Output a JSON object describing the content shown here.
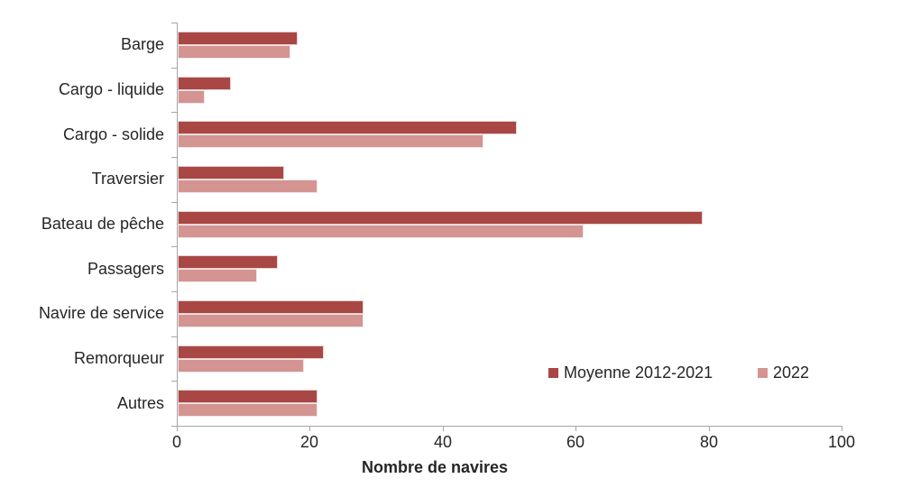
{
  "chart_data": {
    "type": "bar",
    "orientation": "horizontal",
    "xlabel": "Nombre de navires",
    "xlim": [
      0,
      100
    ],
    "xticks": [
      0,
      20,
      40,
      60,
      80,
      100
    ],
    "categories": [
      "Barge",
      "Cargo - liquide",
      "Cargo - solide",
      "Traversier",
      "Bateau de pêche",
      "Passagers",
      "Navire de service",
      "Remorqueur",
      "Autres"
    ],
    "series": [
      {
        "name": "Moyenne 2012-2021",
        "color": "#A84744",
        "values": [
          18,
          8,
          51,
          16,
          79,
          15,
          28,
          22,
          21
        ]
      },
      {
        "name": "2022",
        "color": "#D39492",
        "values": [
          17,
          4,
          46,
          21,
          61,
          12,
          28,
          19,
          21
        ]
      }
    ],
    "legend_position": "inside-bottom-right",
    "grid": false,
    "axis_color": "#A6A6A6",
    "text_color": "#262626"
  }
}
